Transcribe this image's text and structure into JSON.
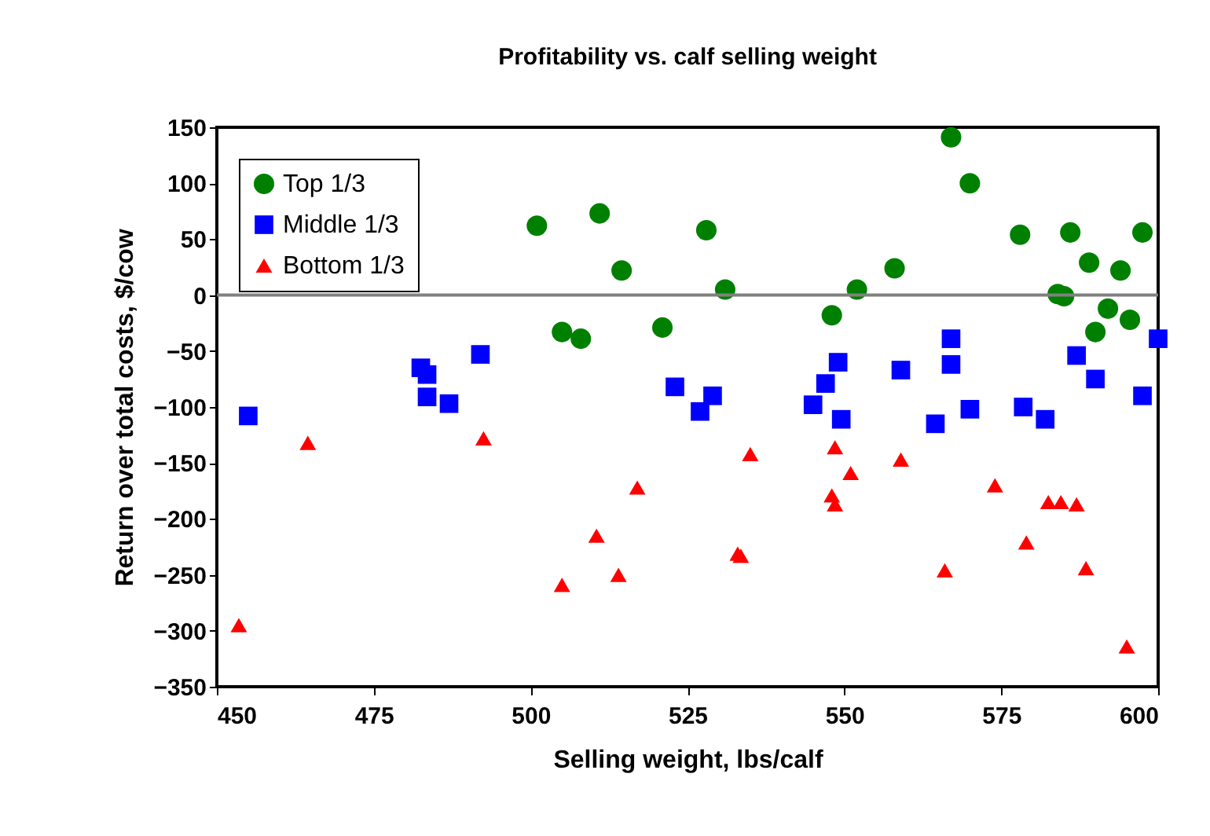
{
  "chart_data": {
    "type": "scatter",
    "title": "Profitability vs. calf selling weight",
    "xlabel": "Selling weight, lbs/calf",
    "ylabel": "Return over total costs, $/cow",
    "xlim": [
      450,
      600
    ],
    "xticks": [
      450,
      475,
      500,
      525,
      550,
      575,
      600
    ],
    "ylim": [
      -350,
      150
    ],
    "yticks": [
      -350,
      -300,
      -250,
      -200,
      -150,
      -100,
      -50,
      0,
      50,
      100,
      150
    ],
    "grid": false,
    "legend": "top left",
    "ref_lines": [
      {
        "axis": "y",
        "value": 0,
        "color": "#808080"
      }
    ],
    "series": [
      {
        "name": "Top 1/3",
        "color": "#008000",
        "marker": "circle",
        "x": [
          501,
          511,
          514.5,
          528,
          505,
          508,
          521,
          531,
          548,
          552,
          558,
          567,
          570,
          578,
          584,
          585,
          586,
          589,
          594,
          592,
          590,
          595.5,
          597.5
        ],
        "values": [
          62,
          73,
          22,
          58,
          -33,
          -39,
          -29,
          5,
          -18,
          5,
          24,
          141,
          100,
          54,
          1,
          -1,
          56,
          29,
          22,
          -12,
          -33,
          -22,
          56
        ]
      },
      {
        "name": "Middle 1/3",
        "color": "#0000ff",
        "marker": "square",
        "x": [
          455,
          482.5,
          483.5,
          483.5,
          487,
          492,
          523,
          527,
          529,
          545,
          547,
          549,
          549.5,
          559,
          564.5,
          567,
          567,
          570,
          578.5,
          582,
          587,
          590,
          597.5,
          600
        ],
        "values": [
          -108,
          -65,
          -71,
          -91,
          -97,
          -53,
          -82,
          -104,
          -90,
          -98,
          -79,
          -60,
          -111,
          -67,
          -115,
          -39,
          -62,
          -102,
          -100,
          -111,
          -54,
          -75,
          -90,
          -39
        ]
      },
      {
        "name": "Bottom 1/3",
        "color": "#ff0000",
        "marker": "triangle",
        "x": [
          464.5,
          492.5,
          517,
          510.5,
          514,
          505,
          453.5,
          535,
          548.5,
          551,
          548,
          548.5,
          559,
          533,
          533.5,
          566,
          574,
          582.5,
          584.5,
          587,
          579,
          588.5,
          595
        ],
        "values": [
          -132,
          -128,
          -172,
          -215,
          -250,
          -259,
          -295,
          -142,
          -136,
          -159,
          -179,
          -187,
          -147,
          -231,
          -233,
          -246,
          -170,
          -185,
          -185,
          -187,
          -221,
          -244,
          -314
        ]
      }
    ]
  }
}
